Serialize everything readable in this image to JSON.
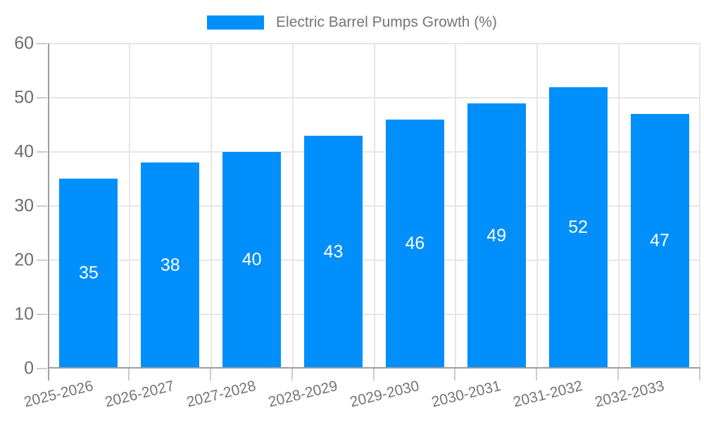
{
  "chart_data": {
    "type": "bar",
    "title": "",
    "series_name": "Electric Barrel Pumps Growth (%)",
    "categories": [
      "2025-2026",
      "2026-2027",
      "2027-2028",
      "2028-2029",
      "2029-2030",
      "2030-2031",
      "2031-2032",
      "2032-2033"
    ],
    "values": [
      35,
      38,
      40,
      43,
      46,
      49,
      52,
      47
    ],
    "xlabel": "",
    "ylabel": "",
    "ylim": [
      0,
      60
    ],
    "yticks": [
      0,
      10,
      20,
      30,
      40,
      50,
      60
    ],
    "grid": true,
    "legend_position": "top-center",
    "data_label_position": "inside-center",
    "x_label_rotation_deg": -14
  },
  "colors": {
    "bar": "#008ffb",
    "grid": "#e6e6e6",
    "axis_line": "#9e9e9e",
    "tick": "#cccccc",
    "y_text": "#6e6e6e",
    "x_text": "#757575",
    "legend_text": "#757575",
    "data_label_text": "#ffffff",
    "background": "#ffffff"
  }
}
